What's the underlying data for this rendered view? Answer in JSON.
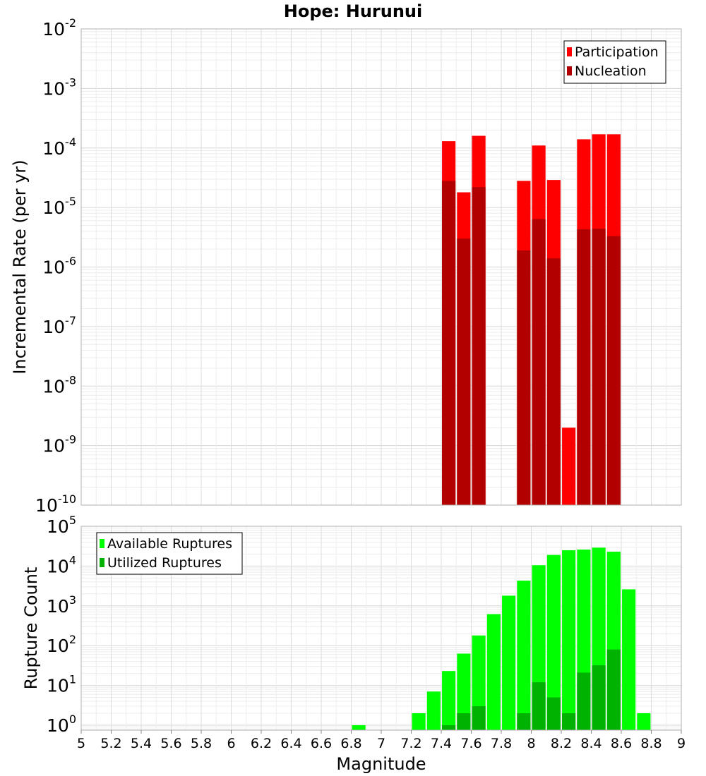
{
  "chart_data": {
    "title": "Hope: Hurunui",
    "xlabel": "Magnitude",
    "xlim": [
      5,
      9
    ],
    "x_ticks": [
      "5",
      "5.2",
      "5.4",
      "5.6",
      "5.8",
      "6",
      "6.2",
      "6.4",
      "6.6",
      "6.8",
      "7",
      "7.2",
      "7.4",
      "7.6",
      "7.8",
      "8",
      "8.2",
      "8.4",
      "8.6",
      "8.8",
      "9"
    ],
    "panels": [
      {
        "type": "bar",
        "y_scale": "log",
        "ylabel": "Incremental Rate (per yr)",
        "ylim": [
          1e-10,
          0.01
        ],
        "y_tick_exponents": [
          "-10",
          "-9",
          "-8",
          "-7",
          "-6",
          "-5",
          "-4",
          "-3",
          "-2"
        ],
        "grid": true,
        "legend_position": "top-right",
        "bar_width": 0.09,
        "series": [
          {
            "name": "Participation",
            "color": "#ff0000",
            "x": [
              7.45,
              7.55,
              7.65,
              7.95,
              8.05,
              8.15,
              8.25,
              8.35,
              8.45,
              8.55
            ],
            "values": [
              0.00013,
              1.8e-05,
              0.00016,
              2.8e-05,
              0.00011,
              2.9e-05,
              2e-09,
              0.00014,
              0.00017,
              0.00017
            ]
          },
          {
            "name": "Nucleation",
            "color": "#b20000",
            "x": [
              7.45,
              7.55,
              7.65,
              7.95,
              8.05,
              8.15,
              8.35,
              8.45,
              8.55
            ],
            "values": [
              2.8e-05,
              3e-06,
              2.2e-05,
              1.9e-06,
              6.4e-06,
              1.4e-06,
              4.3e-06,
              4.4e-06,
              3.3e-06
            ]
          }
        ]
      },
      {
        "type": "bar",
        "y_scale": "log",
        "ylabel": "Rupture Count",
        "ylim": [
          0.75,
          100000.0
        ],
        "y_tick_exponents": [
          "0",
          "1",
          "2",
          "3",
          "4",
          "5"
        ],
        "grid": true,
        "legend_position": "top-left",
        "bar_width": 0.09,
        "series": [
          {
            "name": "Available Ruptures",
            "color": "#00ff00",
            "x": [
              6.85,
              7.25,
              7.35,
              7.45,
              7.55,
              7.65,
              7.75,
              7.85,
              7.95,
              8.05,
              8.15,
              8.25,
              8.35,
              8.45,
              8.55,
              8.65,
              8.75
            ],
            "values": [
              1,
              2,
              7,
              23,
              63,
              180,
              620,
              1800,
              4300,
              10500,
              19000,
              25000,
              26000,
              29000,
              23000,
              2600,
              2
            ]
          },
          {
            "name": "Utilized Ruptures",
            "color": "#00b200",
            "x": [
              7.45,
              7.55,
              7.65,
              7.95,
              8.05,
              8.15,
              8.25,
              8.35,
              8.45,
              8.55
            ],
            "values": [
              1,
              2,
              3,
              2,
              12,
              5,
              2,
              21,
              32,
              80
            ]
          }
        ]
      }
    ]
  }
}
